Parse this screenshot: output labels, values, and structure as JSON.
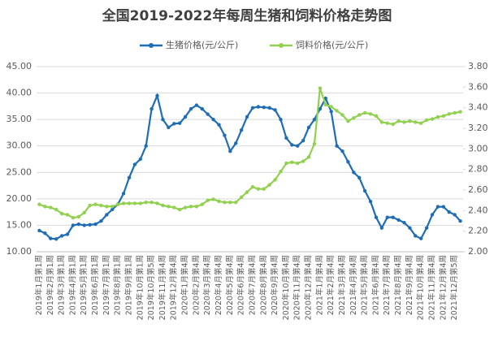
{
  "chart_data": {
    "type": "line",
    "title": "全国2019-2022年每周生猪和饲料价格走势图",
    "categories": [
      "2019年1月第1周",
      null,
      "2019年2月第1周",
      null,
      "2019年3月第1周",
      null,
      "2019年4月第1周",
      null,
      "2019年5月第1周",
      null,
      "2019年6月第1周",
      null,
      "2019年7月第1周",
      null,
      "2019年8月第1周",
      null,
      "2019年9月第1周",
      null,
      "2019年10月第1周",
      null,
      "2019年10月第5周",
      null,
      "2019年11月第4周",
      null,
      "2019年12月第4周",
      null,
      "2020年1月第4周",
      null,
      "2020年2月第4周",
      null,
      "2020年3月第4周",
      null,
      "2020年4月第4周",
      null,
      "2020年5月第4周",
      null,
      "2020年6月第4周",
      null,
      "2020年7月第4周",
      null,
      "2020年8月第4周",
      null,
      "2020年9月第4周",
      null,
      "2020年10月第4周",
      null,
      "2020年11月第4周",
      null,
      "2020年12月第4周",
      null,
      "2021年1月第4周",
      null,
      "2021年2月第4周",
      null,
      "2021年3月第4周",
      null,
      "2021年4月第4周",
      null,
      "2021年5月第4周",
      null,
      "2021年6月第4周",
      null,
      "2021年7月第4周",
      null,
      "2021年8月第4周",
      null,
      "2021年9月第4周",
      null,
      "2021年10月第4周",
      null,
      "2021年11月第4周",
      null,
      "2021年12月第4周",
      null,
      "2021年12月第5周",
      null
    ],
    "series": [
      {
        "name": "生猪价格(元/公斤)",
        "color": "#1f6db3",
        "values": [
          14.0,
          13.5,
          12.5,
          12.4,
          13.0,
          13.3,
          15.0,
          15.2,
          15.0,
          15.1,
          15.2,
          15.8,
          17.0,
          18.0,
          19.0,
          21.0,
          24.0,
          26.5,
          27.5,
          30.0,
          37.0,
          39.5,
          35.0,
          33.5,
          34.2,
          34.3,
          35.5,
          37.0,
          37.7,
          37.0,
          36.0,
          35.0,
          34.0,
          32.0,
          29.0,
          30.5,
          33.0,
          35.5,
          37.2,
          37.4,
          37.3,
          37.2,
          36.8,
          35.0,
          31.5,
          30.2,
          30.0,
          31.0,
          33.5,
          35.0,
          37.0,
          39.0,
          36.5,
          30.0,
          29.0,
          27.0,
          25.0,
          24.0,
          21.5,
          19.5,
          16.5,
          14.5,
          16.5,
          16.5,
          16.0,
          15.5,
          14.5,
          13.0,
          12.5,
          14.5,
          17.0,
          18.5,
          18.5,
          17.5,
          17.0,
          15.8
        ]
      },
      {
        "name": "饲料价格(元/公斤)",
        "color": "#92d050",
        "axis": "y2",
        "values": [
          2.46,
          2.44,
          2.43,
          2.41,
          2.37,
          2.36,
          2.33,
          2.34,
          2.38,
          2.45,
          2.46,
          2.45,
          2.44,
          2.44,
          2.46,
          2.47,
          2.47,
          2.47,
          2.47,
          2.48,
          2.48,
          2.47,
          2.45,
          2.44,
          2.43,
          2.41,
          2.43,
          2.44,
          2.44,
          2.46,
          2.5,
          2.51,
          2.49,
          2.48,
          2.48,
          2.48,
          2.53,
          2.58,
          2.63,
          2.61,
          2.61,
          2.65,
          2.7,
          2.78,
          2.86,
          2.87,
          2.86,
          2.88,
          2.92,
          3.05,
          3.59,
          3.43,
          3.41,
          3.37,
          3.33,
          3.27,
          3.3,
          3.33,
          3.35,
          3.34,
          3.32,
          3.26,
          3.25,
          3.24,
          3.27,
          3.26,
          3.27,
          3.26,
          3.25,
          3.28,
          3.29,
          3.31,
          3.32,
          3.34,
          3.35,
          3.36
        ]
      }
    ],
    "ylim": [
      10,
      45
    ],
    "yticks": [
      {
        "value": 10,
        "label": "10.00"
      },
      {
        "value": 15,
        "label": "15.00"
      },
      {
        "value": 20,
        "label": "20.00"
      },
      {
        "value": 25,
        "label": "25.00"
      },
      {
        "value": 30,
        "label": "30.00"
      },
      {
        "value": 35,
        "label": "35.00"
      },
      {
        "value": 40,
        "label": "40.00"
      },
      {
        "value": 45,
        "label": "45.00"
      }
    ],
    "y2lim": [
      2.0,
      3.8
    ],
    "y2ticks": [
      {
        "value": 2.0,
        "label": "2.00"
      },
      {
        "value": 2.2,
        "label": "2.20"
      },
      {
        "value": 2.4,
        "label": "2.40"
      },
      {
        "value": 2.6,
        "label": "2.60"
      },
      {
        "value": 2.8,
        "label": "2.80"
      },
      {
        "value": 3.0,
        "label": "3.00"
      },
      {
        "value": 3.2,
        "label": "3.20"
      },
      {
        "value": 3.4,
        "label": "3.40"
      },
      {
        "value": 3.6,
        "label": "3.60"
      },
      {
        "value": 3.8,
        "label": "3.80"
      }
    ],
    "grid": true,
    "legend": "top"
  }
}
